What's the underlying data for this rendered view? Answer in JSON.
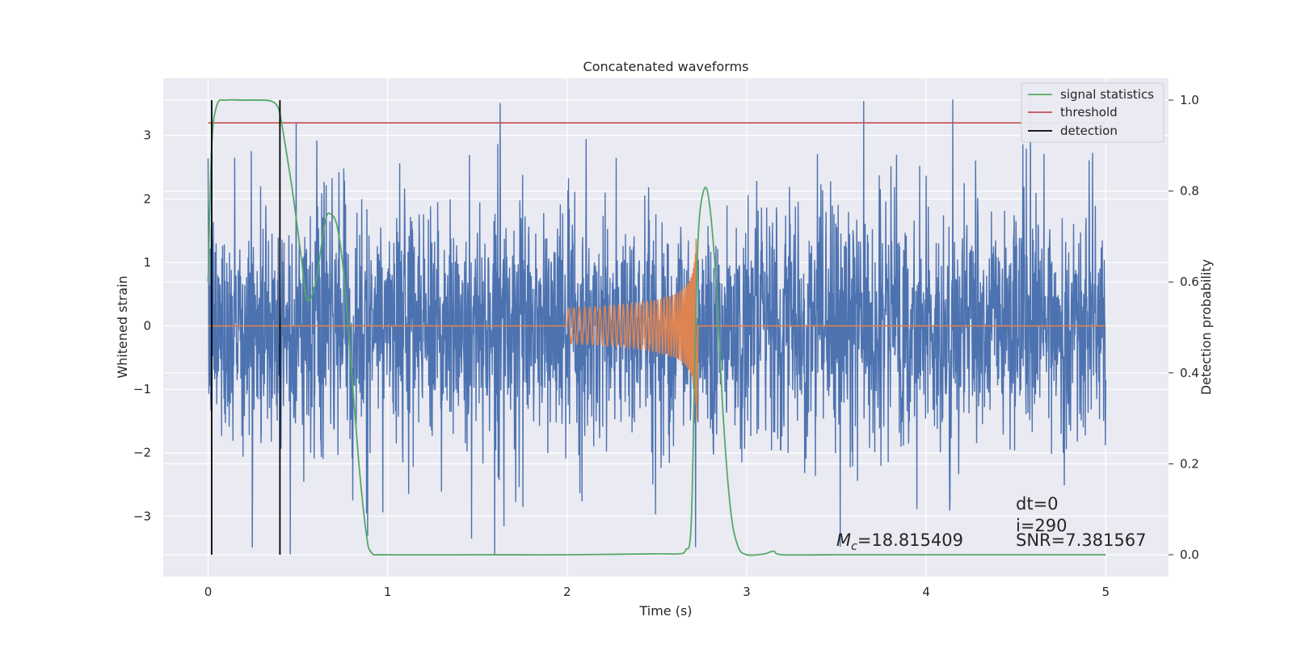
{
  "chart_data": {
    "type": "line",
    "title": "Concatenated waveforms",
    "xlabel": "Time (s)",
    "ylabel": "Whitened strain",
    "y2label": "Detection probability",
    "xlim": [
      -0.25,
      5.35
    ],
    "ylim": [
      -3.95,
      3.9
    ],
    "y2lim": [
      -0.048,
      1.048
    ],
    "x_ticks": [
      0,
      1,
      2,
      3,
      4,
      5
    ],
    "y_ticks": [
      -3,
      -2,
      -1,
      0,
      1,
      2,
      3
    ],
    "y2_ticks": [
      0.0,
      0.2,
      0.4,
      0.6,
      0.8,
      1.0
    ],
    "x_tick_labels": [
      "0",
      "1",
      "2",
      "3",
      "4",
      "5"
    ],
    "y_tick_labels": [
      "−3",
      "−2",
      "−1",
      "0",
      "1",
      "2",
      "3"
    ],
    "y2_tick_labels": [
      "0.0",
      "0.2",
      "0.4",
      "0.6",
      "0.8",
      "1.0"
    ],
    "grid": true,
    "legend_position": "top-right",
    "series": [
      {
        "name": "",
        "role": "noisy strain",
        "color": "#4c72b0",
        "axis": "left",
        "x_range": [
          0,
          5
        ],
        "amplitude_typical": 1.0,
        "max": 3.6,
        "min": -3.6
      },
      {
        "name": "",
        "role": "injected waveform",
        "color": "#dd8452",
        "axis": "left",
        "x_range": [
          0,
          5
        ],
        "chirp_start": 2.0,
        "chirp_end": 2.72,
        "peak_amplitude": 1.65
      },
      {
        "name": "signal statistics",
        "color": "#55a868",
        "axis": "right",
        "x": [
          0,
          0.02,
          0.05,
          0.1,
          0.2,
          0.3,
          0.35,
          0.38,
          0.4,
          0.43,
          0.47,
          0.52,
          0.55,
          0.6,
          0.65,
          0.68,
          0.72,
          0.76,
          0.8,
          0.84,
          0.88,
          0.91,
          1.0,
          1.5,
          2.0,
          2.5,
          2.62,
          2.66,
          2.69,
          2.71,
          2.73,
          2.76,
          2.79,
          2.83,
          2.87,
          2.91,
          2.95,
          3.0,
          3.1,
          3.15,
          3.2,
          3.5,
          4.0,
          4.5,
          5.0
        ],
        "y": [
          0.6,
          0.9,
          0.99,
          1.0,
          1.0,
          1.0,
          0.998,
          0.99,
          0.97,
          0.9,
          0.8,
          0.65,
          0.56,
          0.6,
          0.73,
          0.75,
          0.72,
          0.6,
          0.4,
          0.2,
          0.05,
          0.005,
          0.0,
          0.0,
          0.0,
          0.002,
          0.002,
          0.01,
          0.06,
          0.4,
          0.7,
          0.8,
          0.78,
          0.6,
          0.3,
          0.1,
          0.02,
          0.0,
          0.002,
          0.008,
          0.0,
          0.0,
          0.0,
          0.0,
          0.0
        ]
      },
      {
        "name": "threshold",
        "color": "#c44e52",
        "axis": "right",
        "x": [
          0,
          5
        ],
        "y": [
          0.95,
          0.95
        ]
      },
      {
        "name": "detection",
        "color": "#000000",
        "axis": "right",
        "x_values": [
          0.02,
          0.4
        ],
        "y_range": [
          0.0,
          1.0
        ]
      }
    ],
    "annotations": [
      {
        "text_parts": [
          "M",
          "c",
          "=18.815409"
        ],
        "x": 3.5,
        "y": -3.35
      },
      {
        "text": "dt=0",
        "x": 4.5,
        "y": -2.85
      },
      {
        "text": "i=290",
        "x": 4.5,
        "y": -3.15
      },
      {
        "text": "SNR=7.381567",
        "x": 4.5,
        "y": -3.35
      }
    ]
  }
}
